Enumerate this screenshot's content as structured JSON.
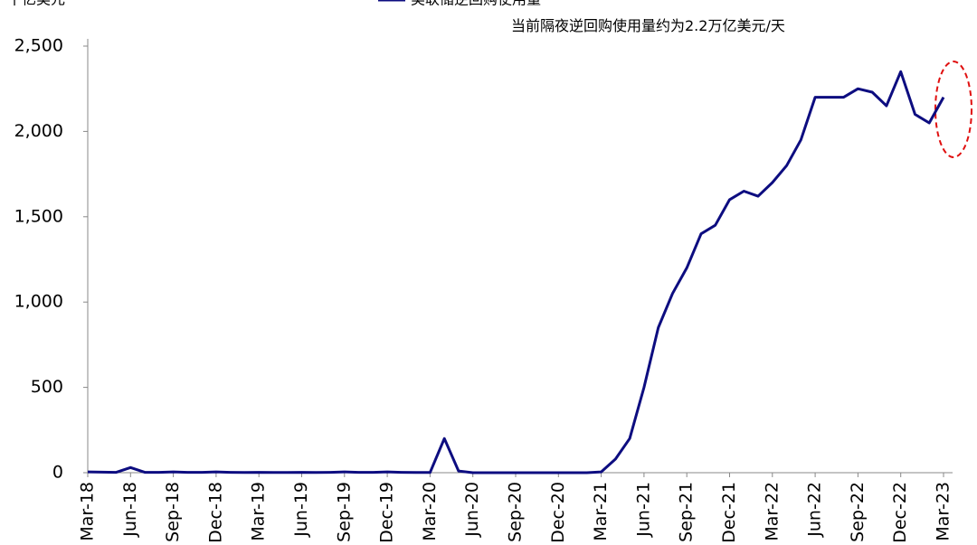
{
  "chart_data": {
    "type": "line",
    "y_unit": "十亿美元",
    "annotation": "当前隔夜逆回购使用量约为2.2万亿美元/天",
    "categories": [
      "Mar-18",
      null,
      null,
      "Jun-18",
      null,
      null,
      "Sep-18",
      null,
      null,
      "Dec-18",
      null,
      null,
      "Mar-19",
      null,
      null,
      "Jun-19",
      null,
      null,
      "Sep-19",
      null,
      null,
      "Dec-19",
      null,
      null,
      "Mar-20",
      null,
      null,
      "Jun-20",
      null,
      null,
      "Sep-20",
      null,
      null,
      "Dec-20",
      null,
      null,
      "Mar-21",
      null,
      null,
      "Jun-21",
      null,
      null,
      "Sep-21",
      null,
      null,
      "Dec-21",
      null,
      null,
      "Mar-22",
      null,
      null,
      "Jun-22",
      null,
      null,
      "Sep-22",
      null,
      null,
      "Dec-22",
      null,
      null,
      "Mar-23"
    ],
    "series": [
      {
        "name": "美联储逆回购使用量",
        "color": "#0d0d80",
        "values": [
          5,
          3,
          2,
          30,
          2,
          2,
          5,
          2,
          2,
          5,
          2,
          1,
          2,
          1,
          1,
          2,
          1,
          2,
          5,
          2,
          2,
          5,
          2,
          1,
          1,
          200,
          10,
          0,
          0,
          0,
          0,
          0,
          0,
          0,
          0,
          0,
          5,
          80,
          200,
          500,
          850,
          1050,
          1200,
          1400,
          1450,
          1600,
          1650,
          1620,
          1700,
          1800,
          1950,
          2200,
          2200,
          2200,
          2250,
          2230,
          2150,
          2350,
          2100,
          2050,
          2200
        ]
      }
    ],
    "ylim": [
      0,
      2500
    ],
    "yticks": [
      0,
      500,
      {
        "value": 1000,
        "label": "1,000"
      },
      {
        "value": 1500,
        "label": "1,500"
      },
      {
        "value": 2000,
        "label": "2,000"
      },
      {
        "value": 2500,
        "label": "2,500"
      }
    ]
  }
}
